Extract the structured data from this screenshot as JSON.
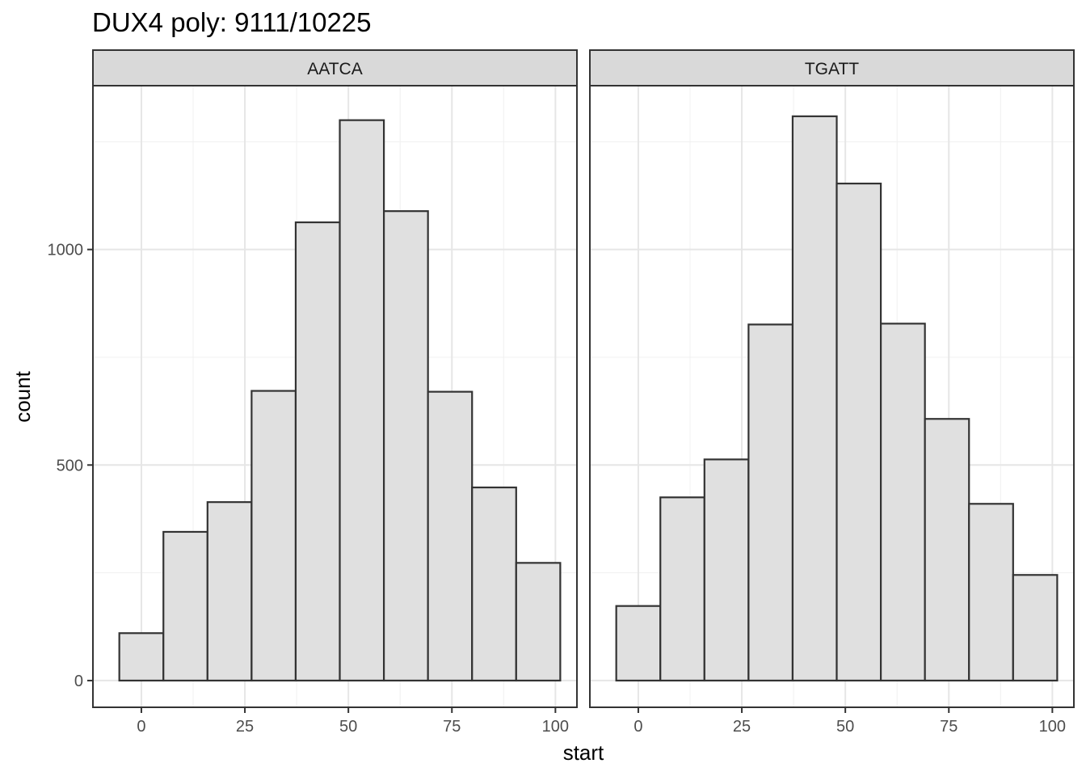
{
  "chart_data": {
    "type": "bar",
    "title": "DUX4 poly: 9111/10225",
    "xlabel": "start",
    "ylabel": "count",
    "xlim": [
      -11.7,
      105.2
    ],
    "ylim": [
      -62,
      1380
    ],
    "x_ticks": [
      0,
      25,
      50,
      75,
      100
    ],
    "y_ticks": [
      0,
      500,
      1000
    ],
    "grid": true,
    "bin_width": 10.65,
    "bin_centers": [
      0,
      10.65,
      21.3,
      31.95,
      42.6,
      53.25,
      63.9,
      74.55,
      85.2,
      95.85
    ],
    "fill_color": "#e0e0e0",
    "stroke_color": "#333333",
    "strip_color": "#d9d9d9",
    "panels": [
      {
        "name": "AATCA",
        "counts": [
          110,
          345,
          414,
          672,
          1063,
          1300,
          1089,
          670,
          448,
          273
        ]
      },
      {
        "name": "TGATT",
        "counts": [
          173,
          425,
          513,
          826,
          1309,
          1153,
          828,
          607,
          410,
          245
        ]
      }
    ]
  }
}
